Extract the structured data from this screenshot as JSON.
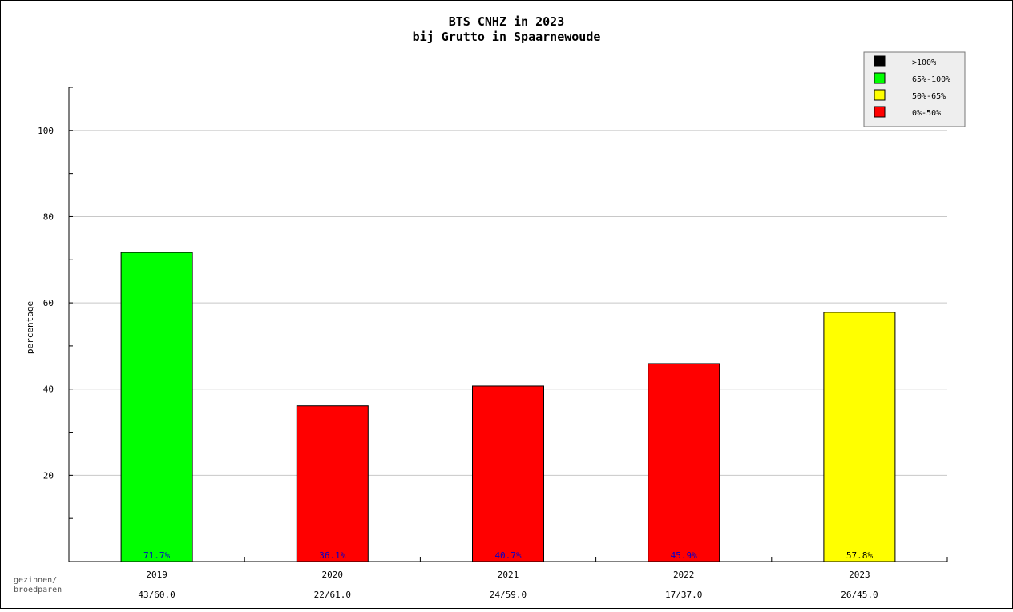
{
  "chart_data": {
    "type": "bar",
    "title": "BTS CNHZ in 2023",
    "subtitle": "bij Grutto in Spaarnewoude",
    "ylabel": "percentage",
    "ylim": [
      0,
      110
    ],
    "yticks": [
      20,
      40,
      60,
      80,
      100
    ],
    "grid": true,
    "legend_position": "top-right",
    "categories": [
      "2019",
      "2020",
      "2021",
      "2022",
      "2023"
    ],
    "values": [
      71.7,
      36.1,
      40.7,
      45.9,
      57.8
    ],
    "value_labels": [
      "71.7%",
      "36.1%",
      "40.7%",
      "45.9%",
      "57.8%"
    ],
    "secondary_row_title": "gezinnen/\nbroedparen",
    "secondary_labels": [
      "43/60.0",
      "22/61.0",
      "24/59.0",
      "17/37.0",
      "26/45.0"
    ],
    "bar_colors": [
      "#00ff00",
      "#ff0000",
      "#ff0000",
      "#ff0000",
      "#ffff00"
    ],
    "value_label_colors": [
      "#0000cc",
      "#0000cc",
      "#0000cc",
      "#0000cc",
      "#000000"
    ],
    "legend": [
      {
        "label": ">100%",
        "color": "#000000"
      },
      {
        "label": "65%-100%",
        "color": "#00ff00"
      },
      {
        "label": "50%-65%",
        "color": "#ffff00"
      },
      {
        "label": "0%-50%",
        "color": "#ff0000"
      }
    ]
  }
}
